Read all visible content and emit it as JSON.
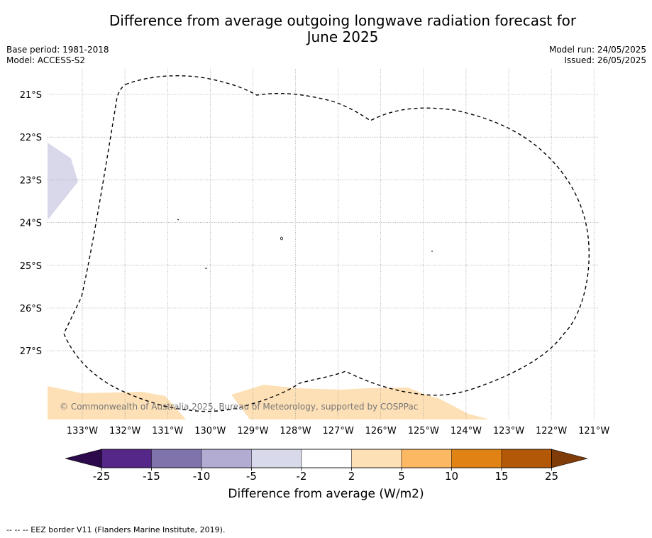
{
  "header": {
    "title_line1": "Difference from average outgoing longwave radiation forecast for",
    "title_line2": "June 2025",
    "base_period": "Base period: 1981-2018",
    "model": "Model: ACCESS-S2",
    "model_run": "Model run: 24/05/2025",
    "issued": "Issued: 26/05/2025"
  },
  "map": {
    "lon_labels": [
      "133°W",
      "132°W",
      "131°W",
      "130°W",
      "129°W",
      "128°W",
      "127°W",
      "126°W",
      "125°W",
      "124°W",
      "123°W",
      "122°W",
      "121°W"
    ],
    "lat_labels": [
      "21°S",
      "22°S",
      "23°S",
      "24°S",
      "25°S",
      "26°S",
      "27°S"
    ],
    "copyright": "© Commonwealth of Australia 2025, Bureau of Meteorology, supported by COSPPac",
    "colors": {
      "light_purple": "#d8d8ea",
      "light_orange": "#fde0b6"
    }
  },
  "colorbar": {
    "ticks": [
      "-25",
      "-15",
      "-10",
      "-5",
      "-2",
      "2",
      "5",
      "10",
      "15",
      "25"
    ],
    "colors": [
      "#2d0a4b",
      "#542788",
      "#8073ac",
      "#b2abd2",
      "#d8daeb",
      "#ffffff",
      "#fee0b6",
      "#fdb863",
      "#e08214",
      "#b35806",
      "#7f3b08"
    ],
    "label": "Difference from average (W/m2)"
  },
  "footer": {
    "legend": "--  --  -- EEZ border V11 (Flanders Marine Institute, 2019)."
  }
}
